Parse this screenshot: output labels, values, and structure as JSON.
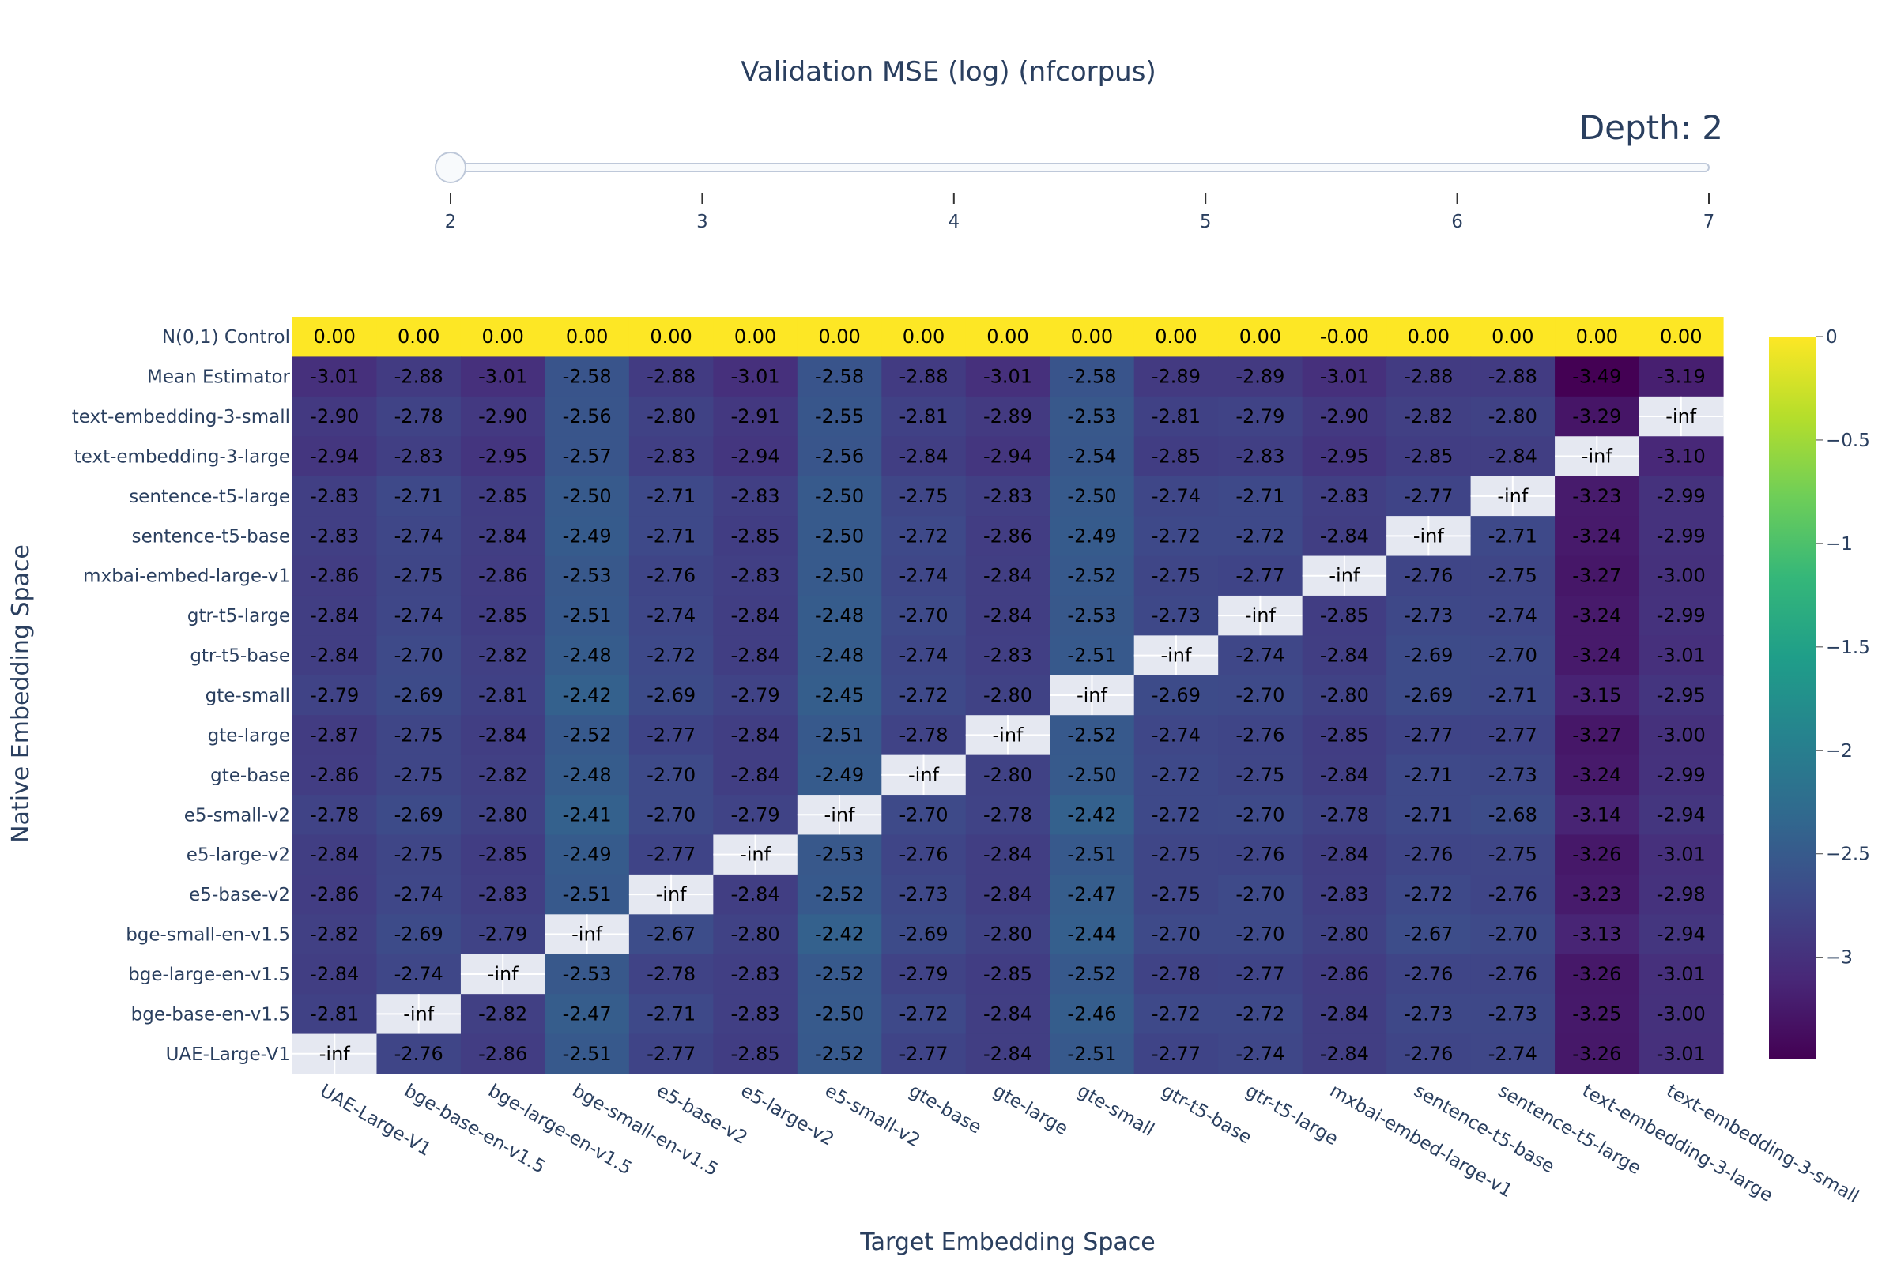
{
  "chart_data": {
    "type": "heatmap",
    "title": "Validation MSE (log) (nfcorpus)",
    "xlabel": "Target Embedding Space",
    "ylabel": "Native Embedding Space",
    "slider": {
      "prefix": "Depth: ",
      "value": "2",
      "steps": [
        "2",
        "3",
        "4",
        "5",
        "6",
        "7"
      ],
      "active_index": 0
    },
    "colorscale": "Viridis",
    "colors": [
      "#440154",
      "#482878",
      "#3e4989",
      "#31688e",
      "#26828e",
      "#1f9e89",
      "#35b779",
      "#6ece58",
      "#b5de2b",
      "#fde725"
    ],
    "diagonal_color": "#e5e8f1",
    "zrange": [
      -3.49,
      0
    ],
    "colorbar_ticks": [
      "0",
      "−0.5",
      "−1",
      "−1.5",
      "−2",
      "−2.5",
      "−3"
    ],
    "colorbar_tick_values": [
      0,
      -0.5,
      -1,
      -1.5,
      -2,
      -2.5,
      -3
    ],
    "x_categories": [
      "UAE-Large-V1",
      "bge-base-en-v1.5",
      "bge-large-en-v1.5",
      "bge-small-en-v1.5",
      "e5-base-v2",
      "e5-large-v2",
      "e5-small-v2",
      "gte-base",
      "gte-large",
      "gte-small",
      "gtr-t5-base",
      "gtr-t5-large",
      "mxbai-embed-large-v1",
      "sentence-t5-base",
      "sentence-t5-large",
      "text-embedding-3-large",
      "text-embedding-3-small"
    ],
    "y_categories": [
      "N(0,1) Control",
      "Mean Estimator",
      "text-embedding-3-small",
      "text-embedding-3-large",
      "sentence-t5-large",
      "sentence-t5-base",
      "mxbai-embed-large-v1",
      "gtr-t5-large",
      "gtr-t5-base",
      "gte-small",
      "gte-large",
      "gte-base",
      "e5-small-v2",
      "e5-large-v2",
      "e5-base-v2",
      "bge-small-en-v1.5",
      "bge-large-en-v1.5",
      "bge-base-en-v1.5",
      "UAE-Large-V1"
    ],
    "cells": [
      [
        "0.00",
        "0.00",
        "0.00",
        "0.00",
        "0.00",
        "0.00",
        "0.00",
        "0.00",
        "0.00",
        "0.00",
        "0.00",
        "0.00",
        "-0.00",
        "0.00",
        "0.00",
        "0.00",
        "0.00"
      ],
      [
        "-3.01",
        "-2.88",
        "-3.01",
        "-2.58",
        "-2.88",
        "-3.01",
        "-2.58",
        "-2.88",
        "-3.01",
        "-2.58",
        "-2.89",
        "-2.89",
        "-3.01",
        "-2.88",
        "-2.88",
        "-3.49",
        "-3.19"
      ],
      [
        "-2.90",
        "-2.78",
        "-2.90",
        "-2.56",
        "-2.80",
        "-2.91",
        "-2.55",
        "-2.81",
        "-2.89",
        "-2.53",
        "-2.81",
        "-2.79",
        "-2.90",
        "-2.82",
        "-2.80",
        "-3.29",
        "-inf"
      ],
      [
        "-2.94",
        "-2.83",
        "-2.95",
        "-2.57",
        "-2.83",
        "-2.94",
        "-2.56",
        "-2.84",
        "-2.94",
        "-2.54",
        "-2.85",
        "-2.83",
        "-2.95",
        "-2.85",
        "-2.84",
        "-inf",
        "-3.10"
      ],
      [
        "-2.83",
        "-2.71",
        "-2.85",
        "-2.50",
        "-2.71",
        "-2.83",
        "-2.50",
        "-2.75",
        "-2.83",
        "-2.50",
        "-2.74",
        "-2.71",
        "-2.83",
        "-2.77",
        "-inf",
        "-3.23",
        "-2.99"
      ],
      [
        "-2.83",
        "-2.74",
        "-2.84",
        "-2.49",
        "-2.71",
        "-2.85",
        "-2.50",
        "-2.72",
        "-2.86",
        "-2.49",
        "-2.72",
        "-2.72",
        "-2.84",
        "-inf",
        "-2.71",
        "-3.24",
        "-2.99"
      ],
      [
        "-2.86",
        "-2.75",
        "-2.86",
        "-2.53",
        "-2.76",
        "-2.83",
        "-2.50",
        "-2.74",
        "-2.84",
        "-2.52",
        "-2.75",
        "-2.77",
        "-inf",
        "-2.76",
        "-2.75",
        "-3.27",
        "-3.00"
      ],
      [
        "-2.84",
        "-2.74",
        "-2.85",
        "-2.51",
        "-2.74",
        "-2.84",
        "-2.48",
        "-2.70",
        "-2.84",
        "-2.53",
        "-2.73",
        "-inf",
        "-2.85",
        "-2.73",
        "-2.74",
        "-3.24",
        "-2.99"
      ],
      [
        "-2.84",
        "-2.70",
        "-2.82",
        "-2.48",
        "-2.72",
        "-2.84",
        "-2.48",
        "-2.74",
        "-2.83",
        "-2.51",
        "-inf",
        "-2.74",
        "-2.84",
        "-2.69",
        "-2.70",
        "-3.24",
        "-3.01"
      ],
      [
        "-2.79",
        "-2.69",
        "-2.81",
        "-2.42",
        "-2.69",
        "-2.79",
        "-2.45",
        "-2.72",
        "-2.80",
        "-inf",
        "-2.69",
        "-2.70",
        "-2.80",
        "-2.69",
        "-2.71",
        "-3.15",
        "-2.95"
      ],
      [
        "-2.87",
        "-2.75",
        "-2.84",
        "-2.52",
        "-2.77",
        "-2.84",
        "-2.51",
        "-2.78",
        "-inf",
        "-2.52",
        "-2.74",
        "-2.76",
        "-2.85",
        "-2.77",
        "-2.77",
        "-3.27",
        "-3.00"
      ],
      [
        "-2.86",
        "-2.75",
        "-2.82",
        "-2.48",
        "-2.70",
        "-2.84",
        "-2.49",
        "-inf",
        "-2.80",
        "-2.50",
        "-2.72",
        "-2.75",
        "-2.84",
        "-2.71",
        "-2.73",
        "-3.24",
        "-2.99"
      ],
      [
        "-2.78",
        "-2.69",
        "-2.80",
        "-2.41",
        "-2.70",
        "-2.79",
        "-inf",
        "-2.70",
        "-2.78",
        "-2.42",
        "-2.72",
        "-2.70",
        "-2.78",
        "-2.71",
        "-2.68",
        "-3.14",
        "-2.94"
      ],
      [
        "-2.84",
        "-2.75",
        "-2.85",
        "-2.49",
        "-2.77",
        "-inf",
        "-2.53",
        "-2.76",
        "-2.84",
        "-2.51",
        "-2.75",
        "-2.76",
        "-2.84",
        "-2.76",
        "-2.75",
        "-3.26",
        "-3.01"
      ],
      [
        "-2.86",
        "-2.74",
        "-2.83",
        "-2.51",
        "-inf",
        "-2.84",
        "-2.52",
        "-2.73",
        "-2.84",
        "-2.47",
        "-2.75",
        "-2.70",
        "-2.83",
        "-2.72",
        "-2.76",
        "-3.23",
        "-2.98"
      ],
      [
        "-2.82",
        "-2.69",
        "-2.79",
        "-inf",
        "-2.67",
        "-2.80",
        "-2.42",
        "-2.69",
        "-2.80",
        "-2.44",
        "-2.70",
        "-2.70",
        "-2.80",
        "-2.67",
        "-2.70",
        "-3.13",
        "-2.94"
      ],
      [
        "-2.84",
        "-2.74",
        "-inf",
        "-2.53",
        "-2.78",
        "-2.83",
        "-2.52",
        "-2.79",
        "-2.85",
        "-2.52",
        "-2.78",
        "-2.77",
        "-2.86",
        "-2.76",
        "-2.76",
        "-3.26",
        "-3.01"
      ],
      [
        "-2.81",
        "-inf",
        "-2.82",
        "-2.47",
        "-2.71",
        "-2.83",
        "-2.50",
        "-2.72",
        "-2.84",
        "-2.46",
        "-2.72",
        "-2.72",
        "-2.84",
        "-2.73",
        "-2.73",
        "-3.25",
        "-3.00"
      ],
      [
        "-inf",
        "-2.76",
        "-2.86",
        "-2.51",
        "-2.77",
        "-2.85",
        "-2.52",
        "-2.77",
        "-2.84",
        "-2.51",
        "-2.77",
        "-2.74",
        "-2.84",
        "-2.76",
        "-2.74",
        "-3.26",
        "-3.01"
      ]
    ]
  }
}
